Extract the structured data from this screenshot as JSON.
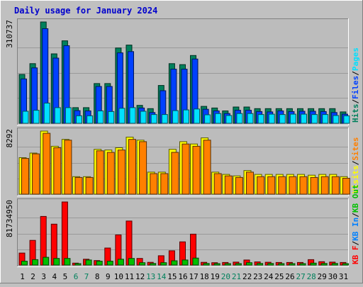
{
  "title": "Daily usage for January 2024",
  "colors": {
    "background": "#c0c0c0",
    "plot_bg": "#bcbcbc",
    "title": "#0000cc",
    "hits": "#00805c",
    "files": "#0040ff",
    "pages": "#00e0ff",
    "visits": "#ffff00",
    "sites": "#ff8000",
    "kbin": "#0080ff",
    "kbout": "#00c000",
    "kbf": "#ff0000",
    "weekday_label": "#000000",
    "weekend_label": "#00805c"
  },
  "chart_data": [
    {
      "type": "bar",
      "panel": "hits-files-pages",
      "max_label": "310737",
      "legend": [
        {
          "text": "Hits",
          "color": "#00805c"
        },
        {
          "text": "/",
          "color": "#000000"
        },
        {
          "text": "Files",
          "color": "#0040ff"
        },
        {
          "text": "/",
          "color": "#000000"
        },
        {
          "text": "Pages",
          "color": "#00e0ff"
        }
      ],
      "ylim": [
        0,
        310737
      ],
      "categories": [
        "1",
        "2",
        "3",
        "4",
        "5",
        "6",
        "7",
        "8",
        "9",
        "10",
        "11",
        "12",
        "13",
        "14",
        "15",
        "16",
        "17",
        "18",
        "19",
        "20",
        "21",
        "22",
        "23",
        "24",
        "25",
        "26",
        "27",
        "28",
        "29",
        "30",
        "31"
      ],
      "series": [
        {
          "name": "Hits",
          "color": "#00805c",
          "values": [
            150000,
            183000,
            310737,
            213000,
            253000,
            48000,
            48000,
            122000,
            122000,
            231000,
            240000,
            55000,
            45000,
            116000,
            183000,
            180000,
            208000,
            52000,
            47000,
            38000,
            50000,
            50000,
            45000,
            45000,
            45000,
            45000,
            45000,
            45000,
            45000,
            45000,
            35000
          ]
        },
        {
          "name": "Files",
          "color": "#0040ff",
          "values": [
            136000,
            170000,
            290000,
            200000,
            238000,
            39000,
            38000,
            113000,
            113000,
            216000,
            220000,
            47000,
            33000,
            100000,
            166000,
            166000,
            197000,
            43000,
            38000,
            30000,
            40000,
            40000,
            36000,
            35000,
            38000,
            36000,
            37000,
            37000,
            36000,
            33000,
            28000
          ]
        },
        {
          "name": "Pages",
          "color": "#00e0ff",
          "values": [
            37000,
            40000,
            62000,
            48000,
            48000,
            23000,
            23000,
            38000,
            36000,
            46000,
            48000,
            37000,
            27000,
            27000,
            39000,
            41000,
            44000,
            26000,
            30000,
            24000,
            30000,
            30000,
            27000,
            28000,
            27000,
            28000,
            28000,
            27000,
            27000,
            24000,
            23000
          ]
        }
      ]
    },
    {
      "type": "bar",
      "panel": "visits-sites",
      "max_label": "8292",
      "legend": [
        {
          "text": "Visits",
          "color": "#ffff00"
        },
        {
          "text": "/",
          "color": "#000000"
        },
        {
          "text": "Sites",
          "color": "#ff8000"
        }
      ],
      "ylim": [
        0,
        8292
      ],
      "categories": [
        "1",
        "2",
        "3",
        "4",
        "5",
        "6",
        "7",
        "8",
        "9",
        "10",
        "11",
        "12",
        "13",
        "14",
        "15",
        "16",
        "17",
        "18",
        "19",
        "20",
        "21",
        "22",
        "23",
        "24",
        "25",
        "26",
        "27",
        "28",
        "29",
        "30",
        "31"
      ],
      "series": [
        {
          "name": "Visits",
          "color": "#ffff00",
          "values": [
            4800,
            5400,
            8292,
            6300,
            7200,
            2300,
            2300,
            5900,
            5800,
            6100,
            7500,
            7100,
            2900,
            2900,
            5900,
            6900,
            6600,
            7400,
            2900,
            2600,
            2400,
            3100,
            2600,
            2600,
            2600,
            2600,
            2600,
            2500,
            2600,
            2600,
            2300
          ]
        },
        {
          "name": "Sites",
          "color": "#ff8000",
          "values": [
            4700,
            5300,
            8000,
            6100,
            7100,
            2200,
            2200,
            5700,
            5500,
            5800,
            7200,
            6900,
            2700,
            2700,
            5500,
            6600,
            6300,
            7100,
            2700,
            2400,
            2200,
            2900,
            2300,
            2300,
            2300,
            2300,
            2300,
            2200,
            2300,
            2300,
            2100
          ]
        }
      ]
    },
    {
      "type": "bar",
      "panel": "kbf-kbin-kbout",
      "max_label": "81734950",
      "legend": [
        {
          "text": "KB F",
          "color": "#ff0000"
        },
        {
          "text": "/",
          "color": "#000000"
        },
        {
          "text": "KB In",
          "color": "#0080ff"
        },
        {
          "text": "/",
          "color": "#000000"
        },
        {
          "text": "KB Out",
          "color": "#00c000"
        }
      ],
      "ylim": [
        0,
        81734950
      ],
      "categories": [
        "1",
        "2",
        "3",
        "4",
        "5",
        "6",
        "7",
        "8",
        "9",
        "10",
        "11",
        "12",
        "13",
        "14",
        "15",
        "16",
        "17",
        "18",
        "19",
        "20",
        "21",
        "22",
        "23",
        "24",
        "25",
        "26",
        "27",
        "28",
        "29",
        "30",
        "31"
      ],
      "series": [
        {
          "name": "KB F",
          "color": "#ff0000",
          "values": [
            15500000,
            32000000,
            63000000,
            53000000,
            81734950,
            2500000,
            7500000,
            5800000,
            22000000,
            39000000,
            57000000,
            8500000,
            3500000,
            12000000,
            18500000,
            30000000,
            40000000,
            3500000,
            3000000,
            3300000,
            3800000,
            6500000,
            4000000,
            3600000,
            3300000,
            3300000,
            3300000,
            7000000,
            4300000,
            3800000,
            3300000
          ]
        },
        {
          "name": "KB Out",
          "color": "#00c000",
          "values": [
            5000000,
            7000000,
            10000000,
            8500000,
            8500000,
            1500000,
            6500000,
            5000000,
            5000000,
            7500000,
            8500000,
            3000000,
            2000000,
            3000000,
            5500000,
            6500000,
            9000000,
            2000000,
            1500000,
            1500000,
            1500000,
            3000000,
            2000000,
            2000000,
            1500000,
            1500000,
            1500000,
            2500000,
            2000000,
            2000000,
            1500000
          ]
        }
      ]
    }
  ],
  "x_labels": [
    {
      "text": "1",
      "weekend": false
    },
    {
      "text": "2",
      "weekend": false
    },
    {
      "text": "3",
      "weekend": false
    },
    {
      "text": "4",
      "weekend": false
    },
    {
      "text": "5",
      "weekend": false
    },
    {
      "text": "6",
      "weekend": true
    },
    {
      "text": "7",
      "weekend": true
    },
    {
      "text": "8",
      "weekend": false
    },
    {
      "text": "9",
      "weekend": false
    },
    {
      "text": "10",
      "weekend": false
    },
    {
      "text": "11",
      "weekend": false
    },
    {
      "text": "12",
      "weekend": false
    },
    {
      "text": "13",
      "weekend": true
    },
    {
      "text": "14",
      "weekend": true
    },
    {
      "text": "15",
      "weekend": false
    },
    {
      "text": "16",
      "weekend": false
    },
    {
      "text": "17",
      "weekend": false
    },
    {
      "text": "18",
      "weekend": false
    },
    {
      "text": "19",
      "weekend": false
    },
    {
      "text": "20",
      "weekend": true
    },
    {
      "text": "21",
      "weekend": true
    },
    {
      "text": "22",
      "weekend": false
    },
    {
      "text": "23",
      "weekend": false
    },
    {
      "text": "24",
      "weekend": false
    },
    {
      "text": "25",
      "weekend": false
    },
    {
      "text": "26",
      "weekend": false
    },
    {
      "text": "27",
      "weekend": true
    },
    {
      "text": "28",
      "weekend": true
    },
    {
      "text": "29",
      "weekend": false
    },
    {
      "text": "30",
      "weekend": false
    },
    {
      "text": "31",
      "weekend": false
    }
  ]
}
